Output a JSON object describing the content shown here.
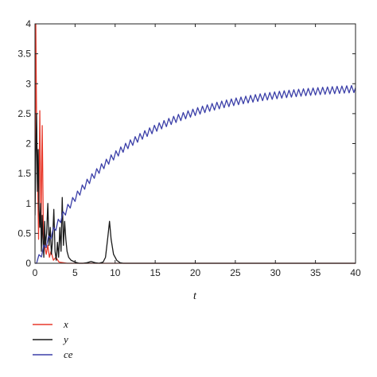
{
  "chart_data": {
    "type": "line",
    "title": "",
    "xlabel": "t",
    "ylabel": "",
    "xlim": [
      0,
      40
    ],
    "ylim": [
      0,
      4
    ],
    "xticks": [
      0,
      5,
      10,
      15,
      20,
      25,
      30,
      35,
      40
    ],
    "yticks": [
      0,
      0.5,
      1,
      1.5,
      2,
      2.5,
      3,
      3.5,
      4
    ],
    "xtick_labels": [
      "0",
      "5",
      "10",
      "15",
      "20",
      "25",
      "30",
      "35",
      "40"
    ],
    "ytick_labels": [
      "0",
      "0.5",
      "1",
      "1.5",
      "2",
      "2.5",
      "3",
      "3.5",
      "4"
    ],
    "grid": false,
    "legend_position": "below-left",
    "series": [
      {
        "name": "x",
        "color": "#e8392b",
        "x": [
          0,
          0.1,
          0.2,
          0.3,
          0.45,
          0.6,
          0.75,
          0.9,
          1.05,
          1.2,
          1.4,
          1.6,
          1.8,
          2.0,
          2.3,
          2.6,
          3.0,
          3.5,
          4.0,
          10,
          40
        ],
        "values": [
          1.0,
          4.0,
          2.3,
          1.6,
          0.4,
          2.55,
          0.6,
          2.3,
          0.5,
          0.3,
          0.15,
          0.3,
          0.1,
          0.2,
          0.05,
          0.1,
          0.02,
          0.01,
          0.0,
          0.0,
          0.0
        ]
      },
      {
        "name": "y",
        "color": "#1a1a1a",
        "x": [
          0,
          0.1,
          0.2,
          0.3,
          0.4,
          0.5,
          0.6,
          0.7,
          0.8,
          0.9,
          1.0,
          1.1,
          1.2,
          1.3,
          1.45,
          1.6,
          1.75,
          1.9,
          2.05,
          2.2,
          2.35,
          2.5,
          2.65,
          2.8,
          2.95,
          3.1,
          3.25,
          3.4,
          3.55,
          3.7,
          3.85,
          4.0,
          4.2,
          4.5,
          5.0,
          5.5,
          6.0,
          6.5,
          7.0,
          7.5,
          8.0,
          8.5,
          8.8,
          9.1,
          9.3,
          9.5,
          9.8,
          10.2,
          10.6,
          11.0,
          40
        ],
        "values": [
          0.8,
          1.8,
          2.5,
          1.2,
          1.9,
          0.9,
          0.6,
          1.0,
          0.2,
          0.8,
          0.4,
          0.1,
          0.7,
          0.3,
          0.5,
          1.0,
          0.3,
          0.6,
          0.15,
          0.4,
          0.9,
          0.2,
          0.05,
          0.35,
          0.1,
          0.6,
          0.2,
          1.1,
          0.3,
          0.7,
          0.4,
          0.2,
          0.1,
          0.05,
          0.02,
          0.0,
          0.0,
          0.01,
          0.03,
          0.01,
          0.0,
          0.02,
          0.1,
          0.45,
          0.7,
          0.4,
          0.15,
          0.05,
          0.01,
          0.0,
          0.0
        ]
      },
      {
        "name": "ce",
        "color": "#3b3fa8",
        "model": {
          "A": 2.98,
          "tau": 10.5,
          "period": 0.6,
          "ripple": 0.06,
          "start": 0.2
        }
      }
    ]
  }
}
